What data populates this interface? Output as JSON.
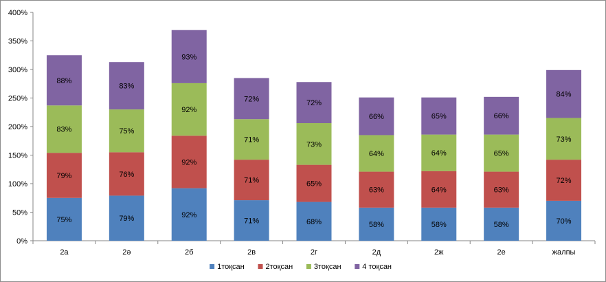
{
  "chart_data": {
    "type": "bar",
    "stacked": true,
    "categories": [
      "2а",
      "2ә",
      "2б",
      "2в",
      "2г",
      "2д",
      "2ж",
      "2е",
      "жалпы"
    ],
    "series": [
      {
        "name": "1тоқсан",
        "color": "#4f81bd",
        "values": [
          75,
          79,
          92,
          71,
          68,
          58,
          58,
          58,
          70
        ]
      },
      {
        "name": "2тоқсан",
        "color": "#c0504d",
        "values": [
          79,
          76,
          92,
          71,
          65,
          63,
          64,
          63,
          72
        ]
      },
      {
        "name": "3тоқсан",
        "color": "#9bbb59",
        "values": [
          83,
          75,
          92,
          71,
          73,
          64,
          64,
          65,
          73
        ]
      },
      {
        "name": "4 тоқсан",
        "color": "#8064a2",
        "values": [
          88,
          83,
          93,
          72,
          72,
          66,
          65,
          66,
          84
        ]
      }
    ],
    "value_suffix": "%",
    "ylim": [
      0,
      400
    ],
    "yticks": [
      0,
      50,
      100,
      150,
      200,
      250,
      300,
      350,
      400
    ],
    "ytick_labels": [
      "0%",
      "50%",
      "100%",
      "150%",
      "200%",
      "250%",
      "300%",
      "350%",
      "400%"
    ],
    "grid": false,
    "legend_position": "bottom",
    "title": "",
    "xlabel": "",
    "ylabel": ""
  }
}
